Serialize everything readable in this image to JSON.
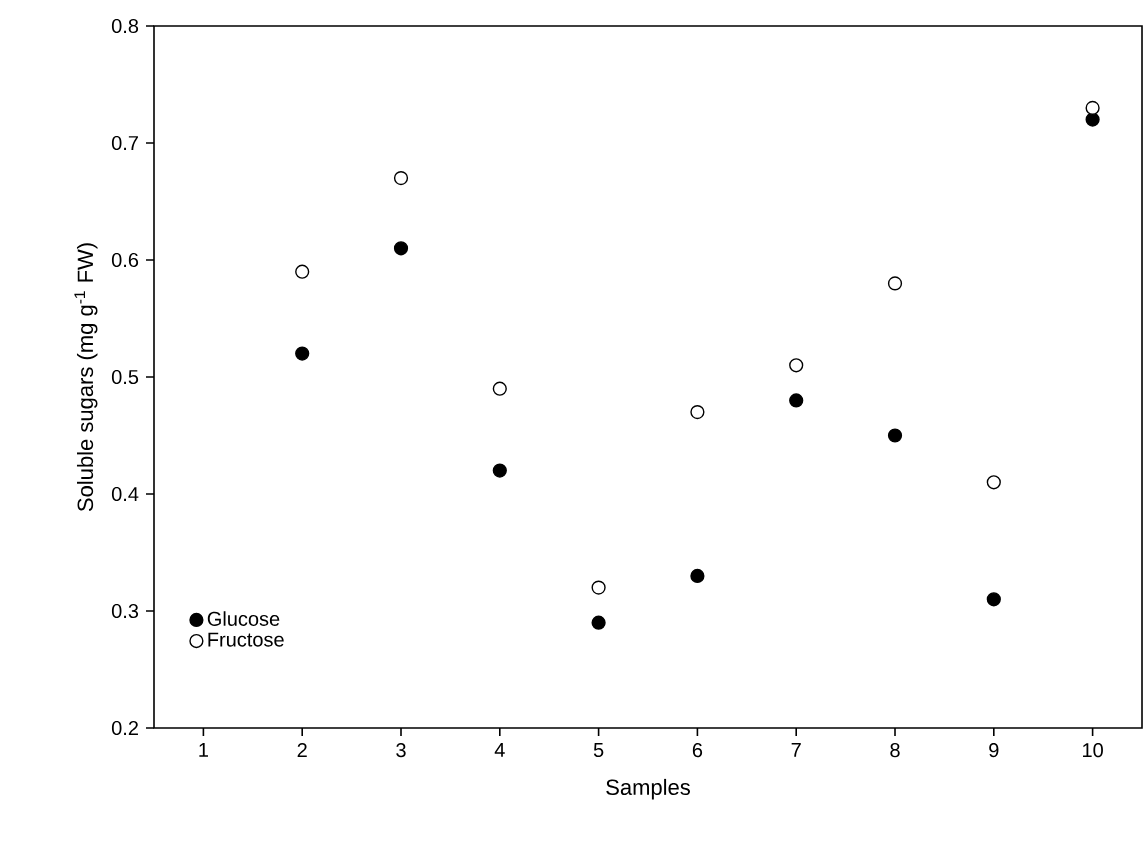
{
  "chart_data": {
    "type": "scatter",
    "xlabel": "Samples",
    "ylabel": "Soluble sugars (mg g$^{-1}$ FW)",
    "x": [
      2,
      3,
      4,
      5,
      6,
      7,
      8,
      9,
      10
    ],
    "series": [
      {
        "name": "Glucose",
        "color": "#000000",
        "values": [
          0.52,
          0.61,
          0.42,
          0.29,
          0.33,
          0.48,
          0.45,
          0.31,
          0.72
        ]
      },
      {
        "name": "Fructose",
        "color": "#ffffff",
        "values": [
          0.59,
          0.67,
          0.49,
          0.32,
          0.47,
          0.51,
          0.58,
          0.41,
          0.73
        ]
      }
    ],
    "xlim": [
      0.5,
      10.5
    ],
    "xticks": [
      1,
      2,
      3,
      4,
      5,
      6,
      7,
      8,
      9,
      10
    ],
    "ylim": [
      0.2,
      0.8
    ],
    "yticks": [
      0.2,
      0.3,
      0.4,
      0.5,
      0.6,
      0.7,
      0.8
    ],
    "marker": "circle",
    "legend": "bottom left",
    "grid": false
  }
}
